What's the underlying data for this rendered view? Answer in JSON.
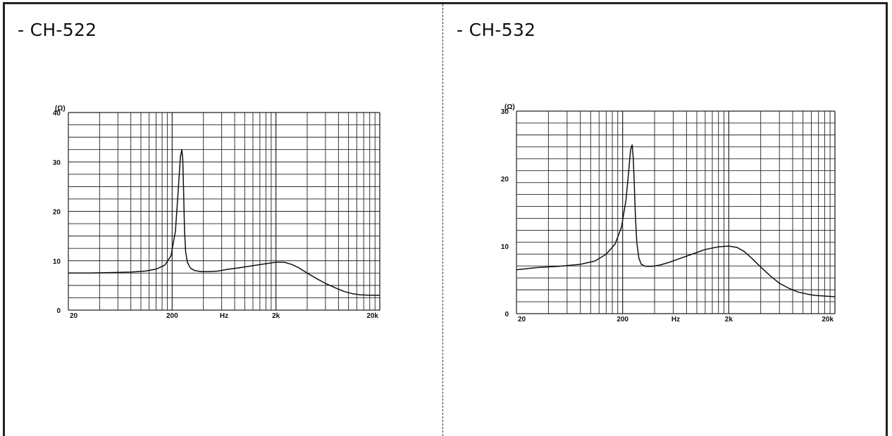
{
  "panels": [
    {
      "title": "- CH-522"
    },
    {
      "title": "- CH-532"
    }
  ],
  "chart_data": [
    {
      "type": "line",
      "title": "- CH-522",
      "ylabel": "(Ω)",
      "xlabel": "Hz",
      "xscale": "log",
      "xlim": [
        20,
        20000
      ],
      "ylim": [
        0,
        40
      ],
      "y_ticks": [
        0,
        10,
        20,
        30,
        40
      ],
      "x_ticks": [
        {
          "value": 20,
          "label": "20"
        },
        {
          "value": 200,
          "label": "200"
        },
        {
          "value": 2000,
          "label": "2k"
        },
        {
          "value": 20000,
          "label": "20k"
        }
      ],
      "x_mid_label": "Hz",
      "grid": true,
      "series": [
        {
          "x": [
            20,
            30,
            50,
            80,
            110,
            140,
            170,
            195,
            215,
            230,
            240,
            248,
            253,
            258,
            263,
            270,
            280,
            300,
            330,
            380,
            450,
            550,
            700,
            900,
            1200,
            1600,
            2000,
            2400,
            2800,
            3300,
            4000,
            5000,
            6000,
            7500,
            9000,
            11000,
            13000,
            16000,
            20000
          ],
          "y": [
            7.5,
            7.5,
            7.6,
            7.7,
            7.9,
            8.3,
            9.1,
            11.0,
            16.0,
            25.0,
            31.0,
            32.5,
            30.5,
            24.0,
            16.0,
            11.8,
            9.7,
            8.5,
            8.0,
            7.8,
            7.8,
            7.9,
            8.3,
            8.6,
            9.0,
            9.4,
            9.7,
            9.7,
            9.3,
            8.6,
            7.5,
            6.3,
            5.4,
            4.5,
            3.8,
            3.3,
            3.1,
            3.0,
            3.0
          ]
        }
      ]
    },
    {
      "type": "line",
      "title": "- CH-532",
      "ylabel": "(Ω)",
      "xlabel": "Hz",
      "xscale": "log",
      "xlim": [
        20,
        20000
      ],
      "ylim": [
        0,
        30
      ],
      "y_ticks": [
        0,
        10,
        20,
        30
      ],
      "x_ticks": [
        {
          "value": 20,
          "label": "20"
        },
        {
          "value": 200,
          "label": "200"
        },
        {
          "value": 2000,
          "label": "2k"
        },
        {
          "value": 20000,
          "label": "20k"
        }
      ],
      "x_mid_label": "Hz",
      "grid": true,
      "series": [
        {
          "x": [
            20,
            30,
            50,
            80,
            110,
            140,
            170,
            195,
            215,
            228,
            238,
            246,
            252,
            258,
            264,
            272,
            285,
            300,
            330,
            380,
            450,
            550,
            700,
            900,
            1200,
            1600,
            2000,
            2400,
            2800,
            3300,
            4000,
            5000,
            6000,
            7500,
            9000,
            11000,
            13000,
            16000,
            20000
          ],
          "y": [
            6.5,
            6.8,
            7.0,
            7.3,
            7.8,
            8.8,
            10.3,
            12.8,
            16.8,
            21.0,
            24.3,
            25.0,
            23.0,
            19.0,
            14.5,
            10.5,
            8.2,
            7.3,
            7.0,
            7.0,
            7.2,
            7.6,
            8.2,
            8.8,
            9.5,
            9.9,
            10.0,
            9.8,
            9.2,
            8.2,
            6.9,
            5.5,
            4.5,
            3.7,
            3.2,
            2.9,
            2.7,
            2.6,
            2.5
          ]
        }
      ]
    }
  ]
}
